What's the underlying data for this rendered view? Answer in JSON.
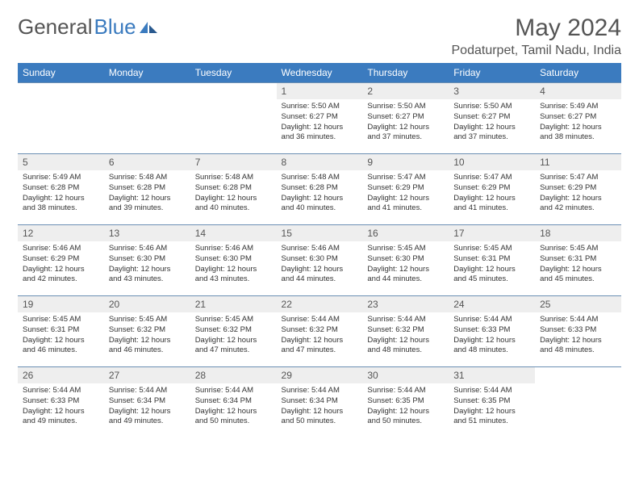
{
  "branding": {
    "logo_text_1": "General",
    "logo_text_2": "Blue",
    "logo_color_gray": "#555555",
    "logo_color_blue": "#3b7bbf"
  },
  "header": {
    "month_title": "May 2024",
    "location": "Podaturpet, Tamil Nadu, India"
  },
  "style": {
    "header_bg": "#3b7bbf",
    "header_fg": "#ffffff",
    "daynum_bg": "#eeeeee",
    "border_color": "#6b8fb3",
    "body_font_size": 9.5,
    "header_font_size": 12,
    "title_font_size": 30,
    "location_font_size": 16
  },
  "daynames": [
    "Sunday",
    "Monday",
    "Tuesday",
    "Wednesday",
    "Thursday",
    "Friday",
    "Saturday"
  ],
  "weeks": [
    [
      {
        "n": "",
        "sr": "",
        "ss": "",
        "dl": ""
      },
      {
        "n": "",
        "sr": "",
        "ss": "",
        "dl": ""
      },
      {
        "n": "",
        "sr": "",
        "ss": "",
        "dl": ""
      },
      {
        "n": "1",
        "sr": "Sunrise: 5:50 AM",
        "ss": "Sunset: 6:27 PM",
        "dl": "Daylight: 12 hours and 36 minutes."
      },
      {
        "n": "2",
        "sr": "Sunrise: 5:50 AM",
        "ss": "Sunset: 6:27 PM",
        "dl": "Daylight: 12 hours and 37 minutes."
      },
      {
        "n": "3",
        "sr": "Sunrise: 5:50 AM",
        "ss": "Sunset: 6:27 PM",
        "dl": "Daylight: 12 hours and 37 minutes."
      },
      {
        "n": "4",
        "sr": "Sunrise: 5:49 AM",
        "ss": "Sunset: 6:27 PM",
        "dl": "Daylight: 12 hours and 38 minutes."
      }
    ],
    [
      {
        "n": "5",
        "sr": "Sunrise: 5:49 AM",
        "ss": "Sunset: 6:28 PM",
        "dl": "Daylight: 12 hours and 38 minutes."
      },
      {
        "n": "6",
        "sr": "Sunrise: 5:48 AM",
        "ss": "Sunset: 6:28 PM",
        "dl": "Daylight: 12 hours and 39 minutes."
      },
      {
        "n": "7",
        "sr": "Sunrise: 5:48 AM",
        "ss": "Sunset: 6:28 PM",
        "dl": "Daylight: 12 hours and 40 minutes."
      },
      {
        "n": "8",
        "sr": "Sunrise: 5:48 AM",
        "ss": "Sunset: 6:28 PM",
        "dl": "Daylight: 12 hours and 40 minutes."
      },
      {
        "n": "9",
        "sr": "Sunrise: 5:47 AM",
        "ss": "Sunset: 6:29 PM",
        "dl": "Daylight: 12 hours and 41 minutes."
      },
      {
        "n": "10",
        "sr": "Sunrise: 5:47 AM",
        "ss": "Sunset: 6:29 PM",
        "dl": "Daylight: 12 hours and 41 minutes."
      },
      {
        "n": "11",
        "sr": "Sunrise: 5:47 AM",
        "ss": "Sunset: 6:29 PM",
        "dl": "Daylight: 12 hours and 42 minutes."
      }
    ],
    [
      {
        "n": "12",
        "sr": "Sunrise: 5:46 AM",
        "ss": "Sunset: 6:29 PM",
        "dl": "Daylight: 12 hours and 42 minutes."
      },
      {
        "n": "13",
        "sr": "Sunrise: 5:46 AM",
        "ss": "Sunset: 6:30 PM",
        "dl": "Daylight: 12 hours and 43 minutes."
      },
      {
        "n": "14",
        "sr": "Sunrise: 5:46 AM",
        "ss": "Sunset: 6:30 PM",
        "dl": "Daylight: 12 hours and 43 minutes."
      },
      {
        "n": "15",
        "sr": "Sunrise: 5:46 AM",
        "ss": "Sunset: 6:30 PM",
        "dl": "Daylight: 12 hours and 44 minutes."
      },
      {
        "n": "16",
        "sr": "Sunrise: 5:45 AM",
        "ss": "Sunset: 6:30 PM",
        "dl": "Daylight: 12 hours and 44 minutes."
      },
      {
        "n": "17",
        "sr": "Sunrise: 5:45 AM",
        "ss": "Sunset: 6:31 PM",
        "dl": "Daylight: 12 hours and 45 minutes."
      },
      {
        "n": "18",
        "sr": "Sunrise: 5:45 AM",
        "ss": "Sunset: 6:31 PM",
        "dl": "Daylight: 12 hours and 45 minutes."
      }
    ],
    [
      {
        "n": "19",
        "sr": "Sunrise: 5:45 AM",
        "ss": "Sunset: 6:31 PM",
        "dl": "Daylight: 12 hours and 46 minutes."
      },
      {
        "n": "20",
        "sr": "Sunrise: 5:45 AM",
        "ss": "Sunset: 6:32 PM",
        "dl": "Daylight: 12 hours and 46 minutes."
      },
      {
        "n": "21",
        "sr": "Sunrise: 5:45 AM",
        "ss": "Sunset: 6:32 PM",
        "dl": "Daylight: 12 hours and 47 minutes."
      },
      {
        "n": "22",
        "sr": "Sunrise: 5:44 AM",
        "ss": "Sunset: 6:32 PM",
        "dl": "Daylight: 12 hours and 47 minutes."
      },
      {
        "n": "23",
        "sr": "Sunrise: 5:44 AM",
        "ss": "Sunset: 6:32 PM",
        "dl": "Daylight: 12 hours and 48 minutes."
      },
      {
        "n": "24",
        "sr": "Sunrise: 5:44 AM",
        "ss": "Sunset: 6:33 PM",
        "dl": "Daylight: 12 hours and 48 minutes."
      },
      {
        "n": "25",
        "sr": "Sunrise: 5:44 AM",
        "ss": "Sunset: 6:33 PM",
        "dl": "Daylight: 12 hours and 48 minutes."
      }
    ],
    [
      {
        "n": "26",
        "sr": "Sunrise: 5:44 AM",
        "ss": "Sunset: 6:33 PM",
        "dl": "Daylight: 12 hours and 49 minutes."
      },
      {
        "n": "27",
        "sr": "Sunrise: 5:44 AM",
        "ss": "Sunset: 6:34 PM",
        "dl": "Daylight: 12 hours and 49 minutes."
      },
      {
        "n": "28",
        "sr": "Sunrise: 5:44 AM",
        "ss": "Sunset: 6:34 PM",
        "dl": "Daylight: 12 hours and 50 minutes."
      },
      {
        "n": "29",
        "sr": "Sunrise: 5:44 AM",
        "ss": "Sunset: 6:34 PM",
        "dl": "Daylight: 12 hours and 50 minutes."
      },
      {
        "n": "30",
        "sr": "Sunrise: 5:44 AM",
        "ss": "Sunset: 6:35 PM",
        "dl": "Daylight: 12 hours and 50 minutes."
      },
      {
        "n": "31",
        "sr": "Sunrise: 5:44 AM",
        "ss": "Sunset: 6:35 PM",
        "dl": "Daylight: 12 hours and 51 minutes."
      },
      {
        "n": "",
        "sr": "",
        "ss": "",
        "dl": ""
      }
    ]
  ]
}
